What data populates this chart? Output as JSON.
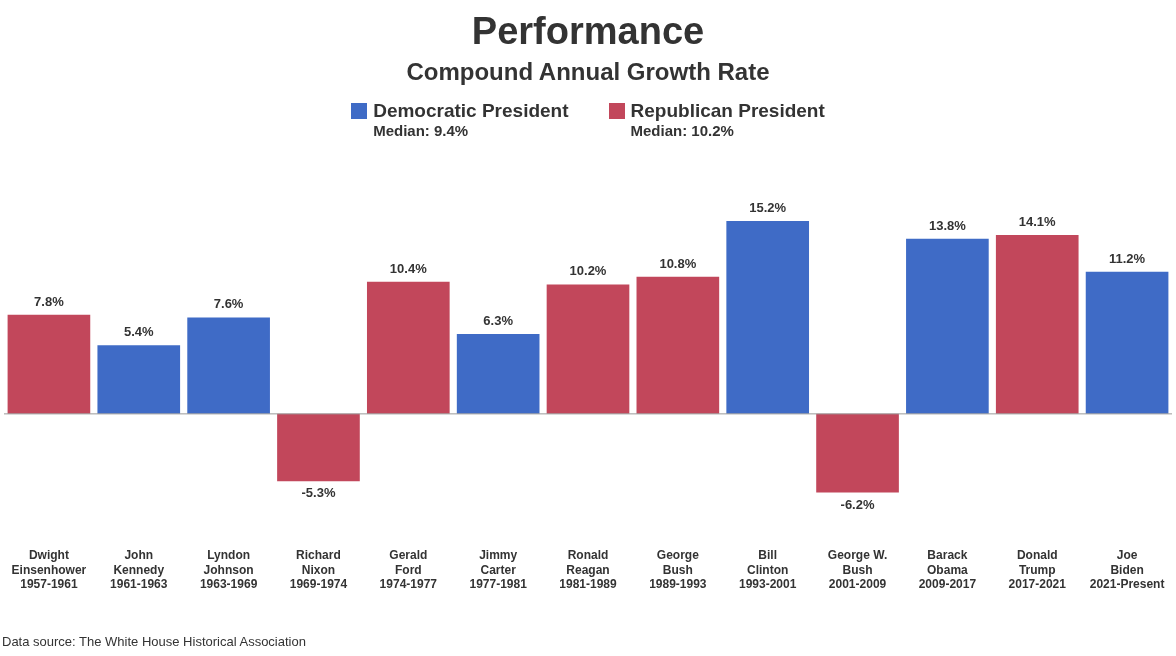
{
  "chart_data": {
    "type": "bar",
    "title": "Performance",
    "subtitle": "Compound Annual Growth Rate",
    "categories": [
      "Dwight\nEinsenhower\n1957-1961",
      "John\nKennedy\n1961-1963",
      "Lyndon\nJohnson\n1963-1969",
      "Richard\nNixon\n1969-1974",
      "Gerald\nFord\n1974-1977",
      "Jimmy\nCarter\n1977-1981",
      "Ronald\nReagan\n1981-1989",
      "George\nBush\n1989-1993",
      "Bill\nClinton\n1993-2001",
      "George W.\nBush\n2001-2009",
      "Barack\nObama\n2009-2017",
      "Donald\nTrump\n2017-2021",
      "Joe\nBiden\n2021-Present"
    ],
    "series": [
      {
        "name": "Democratic President",
        "color": "#3f6bc6",
        "values": [
          null,
          5.4,
          7.6,
          null,
          null,
          6.3,
          null,
          null,
          15.2,
          null,
          13.8,
          null,
          11.2
        ],
        "value_labels": [
          null,
          "5.4%",
          "7.6%",
          null,
          null,
          "6.3%",
          null,
          null,
          "15.2%",
          null,
          "13.8%",
          null,
          "11.2%"
        ]
      },
      {
        "name": "Republican President",
        "color": "#c2475b",
        "values": [
          7.8,
          null,
          null,
          -5.3,
          10.4,
          null,
          10.2,
          10.8,
          null,
          -6.2,
          null,
          14.1,
          null
        ],
        "value_labels": [
          "7.8%",
          null,
          null,
          "-5.3%",
          "10.4%",
          null,
          "10.2%",
          "10.8%",
          null,
          "-6.2%",
          null,
          "14.1%",
          null
        ]
      }
    ],
    "legend": "top",
    "annotations": [
      "Median: 9.4%",
      "Median: 10.2%",
      "Data source: The White House Historical Association"
    ]
  }
}
